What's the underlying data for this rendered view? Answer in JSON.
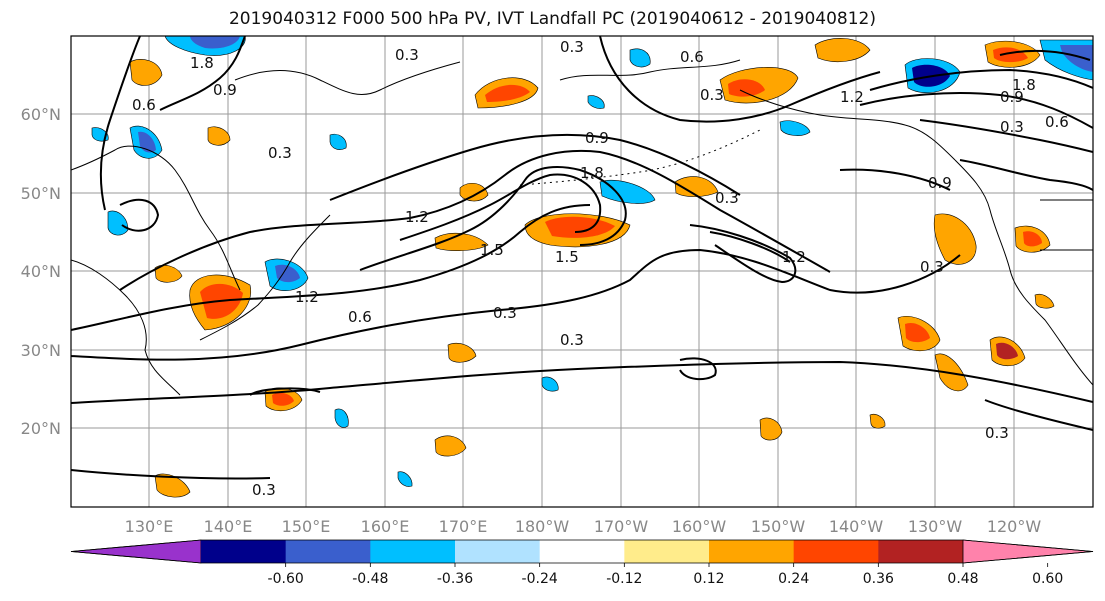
{
  "title": "2019040312 F000 500 hPa PV, IVT Landfall PC (2019040612 - 2019040812)",
  "lat_labels": [
    "60°N",
    "50°N",
    "40°N",
    "30°N",
    "20°N"
  ],
  "lon_labels": [
    "130°E",
    "140°E",
    "150°E",
    "160°E",
    "170°E",
    "180°W",
    "170°W",
    "160°W",
    "150°W",
    "140°W",
    "130°W",
    "120°W"
  ],
  "contour_labels": [
    "0.3",
    "0.6",
    "0.9",
    "1.2",
    "1.5",
    "1.8"
  ],
  "colorbar": {
    "colors": [
      "#9932cc",
      "#00008b",
      "#3a5fcd",
      "#00bfff",
      "#b0e2ff",
      "#ffffff",
      "#ffec8b",
      "#ffa500",
      "#ff4500",
      "#b22222",
      "#ff82ab"
    ],
    "tick_labels": [
      "-0.60",
      "-0.48",
      "-0.36",
      "-0.24",
      "-0.12",
      "0.12",
      "0.24",
      "0.36",
      "0.48",
      "0.60"
    ]
  }
}
